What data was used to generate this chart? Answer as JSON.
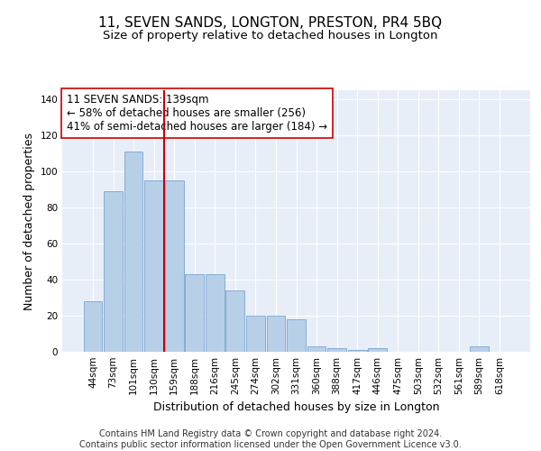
{
  "title": "11, SEVEN SANDS, LONGTON, PRESTON, PR4 5BQ",
  "subtitle": "Size of property relative to detached houses in Longton",
  "xlabel": "Distribution of detached houses by size in Longton",
  "ylabel": "Number of detached properties",
  "footer_line1": "Contains HM Land Registry data © Crown copyright and database right 2024.",
  "footer_line2": "Contains public sector information licensed under the Open Government Licence v3.0.",
  "annotation_line1": "11 SEVEN SANDS: 139sqm",
  "annotation_line2": "← 58% of detached houses are smaller (256)",
  "annotation_line3": "41% of semi-detached houses are larger (184) →",
  "categories": [
    "44sqm",
    "73sqm",
    "101sqm",
    "130sqm",
    "159sqm",
    "188sqm",
    "216sqm",
    "245sqm",
    "274sqm",
    "302sqm",
    "331sqm",
    "360sqm",
    "388sqm",
    "417sqm",
    "446sqm",
    "475sqm",
    "503sqm",
    "532sqm",
    "561sqm",
    "589sqm",
    "618sqm"
  ],
  "values": [
    28,
    89,
    111,
    95,
    95,
    43,
    43,
    34,
    20,
    20,
    18,
    3,
    2,
    1,
    2,
    0,
    0,
    0,
    0,
    3,
    0
  ],
  "bar_color": "#b8cfe8",
  "bar_edge_color": "#6699cc",
  "vline_color": "#cc0000",
  "vline_x": 3.5,
  "ylim": [
    0,
    145
  ],
  "yticks": [
    0,
    20,
    40,
    60,
    80,
    100,
    120,
    140
  ],
  "bg_color": "#e8eef8",
  "grid_color": "#ffffff",
  "title_fontsize": 11,
  "subtitle_fontsize": 9.5,
  "axis_label_fontsize": 9,
  "tick_fontsize": 7.5,
  "annotation_fontsize": 8.5,
  "footer_fontsize": 7
}
